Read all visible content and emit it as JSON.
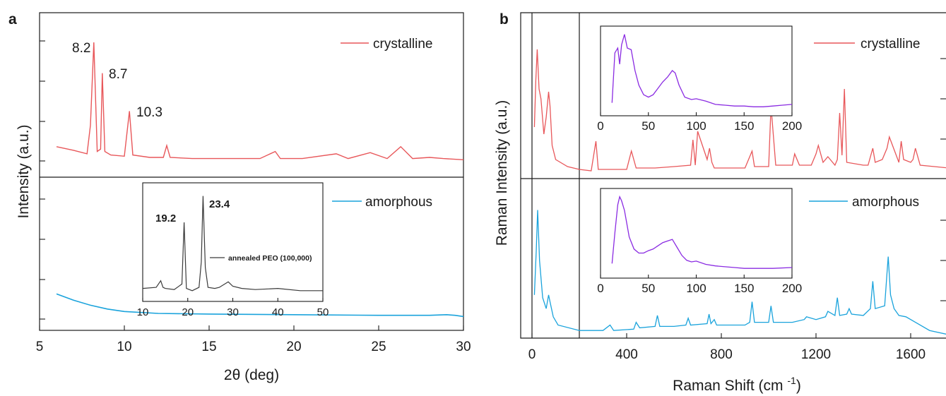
{
  "figure": {
    "panel_a_letter": "a",
    "panel_b_letter": "b"
  },
  "colors": {
    "crystalline": "#e8575a",
    "amorphous": "#1aa3dc",
    "inset_peo": "#3a3a3a",
    "inset_raman": "#8a2be2",
    "axis": "#1a1a1a"
  },
  "chart_data": [
    {
      "id": "a",
      "type": "line",
      "xlabel": "2θ (deg)",
      "ylabel": "Intensity (a.u.)",
      "xlim": [
        5,
        30
      ],
      "xticks": [
        5,
        10,
        15,
        20,
        25,
        30
      ],
      "legend_position": "top-right",
      "series": [
        {
          "name": "crystalline",
          "x": [
            6.0,
            7.0,
            7.8,
            8.0,
            8.2,
            8.4,
            8.6,
            8.7,
            8.85,
            9.2,
            10.0,
            10.3,
            10.5,
            11.5,
            12.3,
            12.5,
            12.7,
            14,
            16.3,
            18,
            18.9,
            19.2,
            20.5,
            22.5,
            23.2,
            24.5,
            25.5,
            26.3,
            27.0,
            28.0,
            28.8,
            30.0
          ],
          "y": [
            0.12,
            0.09,
            0.06,
            0.3,
            1.0,
            0.08,
            0.1,
            0.74,
            0.08,
            0.05,
            0.04,
            0.42,
            0.05,
            0.03,
            0.03,
            0.13,
            0.03,
            0.02,
            0.02,
            0.02,
            0.08,
            0.02,
            0.02,
            0.06,
            0.02,
            0.07,
            0.02,
            0.12,
            0.02,
            0.03,
            0.02,
            0.01
          ]
        },
        {
          "name": "amorphous",
          "x": [
            6,
            7,
            8,
            9,
            10,
            12,
            15,
            20,
            25,
            28,
            29,
            29.5,
            30
          ],
          "y": [
            0.2,
            0.15,
            0.11,
            0.08,
            0.06,
            0.045,
            0.04,
            0.035,
            0.03,
            0.03,
            0.035,
            0.03,
            0.02
          ]
        }
      ],
      "annotations": [
        "8.2",
        "8.7",
        "10.3"
      ]
    },
    {
      "id": "a-inset",
      "type": "line",
      "xlim": [
        10,
        50
      ],
      "xticks": [
        10,
        20,
        30,
        40,
        50
      ],
      "series": [
        {
          "name": "annealed PEO (100,000)",
          "x": [
            10,
            13,
            14,
            14.5,
            15,
            17,
            18.7,
            19.2,
            19.7,
            21,
            22.5,
            23.0,
            23.4,
            23.9,
            24.5,
            26,
            27,
            29,
            30,
            32,
            35,
            40,
            45,
            50
          ],
          "y": [
            0.06,
            0.07,
            0.13,
            0.07,
            0.06,
            0.05,
            0.1,
            0.66,
            0.06,
            0.04,
            0.07,
            0.3,
            0.9,
            0.25,
            0.07,
            0.06,
            0.07,
            0.12,
            0.08,
            0.06,
            0.05,
            0.06,
            0.04,
            0.04
          ]
        }
      ],
      "annotations": [
        "19.2",
        "23.4"
      ]
    },
    {
      "id": "b",
      "type": "line",
      "xlabel": "Raman Shift (cm⁻¹)",
      "ylabel": "Raman Intensity (a.u.)",
      "xlim": [
        -30,
        1760
      ],
      "xticks": [
        0,
        400,
        800,
        1200,
        1600
      ],
      "legend_position": "top-right",
      "series": [
        {
          "name": "crystalline",
          "x": [
            10,
            16,
            22,
            30,
            38,
            50,
            60,
            70,
            76,
            85,
            100,
            150,
            200,
            250,
            270,
            280,
            300,
            400,
            420,
            440,
            460,
            520,
            600,
            670,
            680,
            690,
            700,
            740,
            750,
            760,
            770,
            800,
            850,
            900,
            930,
            940,
            960,
            1000,
            1010,
            1030,
            1060,
            1100,
            1110,
            1130,
            1180,
            1200,
            1210,
            1230,
            1250,
            1270,
            1280,
            1290,
            1300,
            1310,
            1320,
            1330,
            1400,
            1420,
            1440,
            1450,
            1480,
            1500,
            1510,
            1550,
            1560,
            1570,
            1600,
            1610,
            1620,
            1640,
            1700,
            1760
          ],
          "y": [
            0.35,
            0.68,
            0.9,
            0.62,
            0.55,
            0.3,
            0.42,
            0.6,
            0.5,
            0.22,
            0.12,
            0.07,
            0.05,
            0.04,
            0.25,
            0.05,
            0.05,
            0.05,
            0.18,
            0.06,
            0.06,
            0.06,
            0.07,
            0.08,
            0.26,
            0.08,
            0.32,
            0.12,
            0.2,
            0.1,
            0.06,
            0.06,
            0.06,
            0.06,
            0.18,
            0.07,
            0.07,
            0.07,
            0.5,
            0.08,
            0.08,
            0.08,
            0.16,
            0.08,
            0.08,
            0.16,
            0.22,
            0.1,
            0.14,
            0.1,
            0.08,
            0.12,
            0.45,
            0.15,
            0.62,
            0.1,
            0.08,
            0.08,
            0.2,
            0.1,
            0.12,
            0.2,
            0.28,
            0.1,
            0.25,
            0.12,
            0.1,
            0.12,
            0.2,
            0.08,
            0.07,
            0.06
          ]
        },
        {
          "name": "amorphous",
          "x": [
            10,
            18,
            24,
            32,
            45,
            60,
            70,
            76,
            90,
            110,
            200,
            300,
            330,
            345,
            430,
            440,
            455,
            520,
            530,
            540,
            600,
            650,
            660,
            670,
            740,
            748,
            756,
            770,
            780,
            790,
            850,
            900,
            920,
            930,
            940,
            1000,
            1010,
            1020,
            1100,
            1150,
            1160,
            1200,
            1240,
            1250,
            1280,
            1290,
            1300,
            1330,
            1340,
            1350,
            1400,
            1430,
            1440,
            1450,
            1490,
            1500,
            1505,
            1515,
            1530,
            1550,
            1580,
            1620,
            1680,
            1760
          ],
          "y": [
            0.3,
            0.62,
            0.92,
            0.55,
            0.28,
            0.2,
            0.3,
            0.25,
            0.14,
            0.08,
            0.04,
            0.04,
            0.08,
            0.04,
            0.05,
            0.1,
            0.06,
            0.07,
            0.15,
            0.07,
            0.07,
            0.08,
            0.13,
            0.08,
            0.09,
            0.16,
            0.09,
            0.12,
            0.08,
            0.08,
            0.08,
            0.08,
            0.1,
            0.25,
            0.1,
            0.1,
            0.22,
            0.1,
            0.1,
            0.12,
            0.14,
            0.12,
            0.14,
            0.18,
            0.15,
            0.28,
            0.15,
            0.16,
            0.2,
            0.16,
            0.15,
            0.2,
            0.4,
            0.2,
            0.22,
            0.46,
            0.58,
            0.3,
            0.2,
            0.15,
            0.14,
            0.1,
            0.04,
            0.01
          ]
        }
      ]
    },
    {
      "id": "b-inset-crystalline",
      "type": "line",
      "xlim": [
        0,
        200
      ],
      "xticks": [
        0,
        50,
        100,
        150,
        200
      ],
      "series": [
        {
          "x": [
            12,
            15,
            18,
            20,
            22,
            25,
            28,
            32,
            36,
            40,
            45,
            50,
            55,
            60,
            65,
            70,
            75,
            78,
            82,
            88,
            95,
            100,
            110,
            120,
            130,
            140,
            150,
            160,
            170,
            180,
            190,
            200
          ],
          "y": [
            0.1,
            0.72,
            0.78,
            0.58,
            0.82,
            0.95,
            0.78,
            0.76,
            0.5,
            0.32,
            0.2,
            0.17,
            0.2,
            0.28,
            0.36,
            0.42,
            0.5,
            0.47,
            0.32,
            0.17,
            0.14,
            0.15,
            0.12,
            0.08,
            0.07,
            0.06,
            0.06,
            0.05,
            0.05,
            0.06,
            0.07,
            0.08
          ]
        }
      ]
    },
    {
      "id": "b-inset-amorphous",
      "type": "line",
      "xlim": [
        0,
        200
      ],
      "xticks": [
        0,
        50,
        100,
        150,
        200
      ],
      "series": [
        {
          "x": [
            12,
            15,
            18,
            20,
            22,
            25,
            30,
            35,
            40,
            45,
            50,
            55,
            60,
            65,
            70,
            75,
            80,
            85,
            90,
            95,
            100,
            110,
            120,
            130,
            140,
            150,
            160,
            180,
            200
          ],
          "y": [
            0.12,
            0.5,
            0.85,
            0.95,
            0.9,
            0.78,
            0.45,
            0.3,
            0.25,
            0.25,
            0.28,
            0.3,
            0.34,
            0.38,
            0.4,
            0.42,
            0.32,
            0.22,
            0.16,
            0.14,
            0.15,
            0.11,
            0.09,
            0.08,
            0.07,
            0.06,
            0.06,
            0.06,
            0.07
          ]
        }
      ]
    }
  ]
}
